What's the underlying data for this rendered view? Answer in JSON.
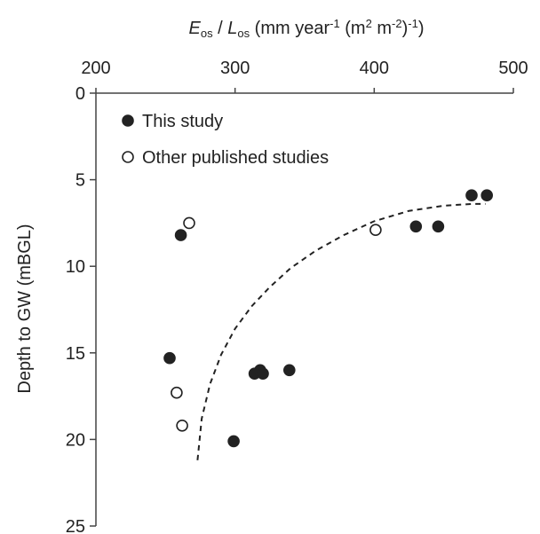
{
  "chart_data": {
    "type": "scatter",
    "title": "",
    "xlabel": {
      "parts": [
        {
          "text": "E",
          "style": "italic"
        },
        {
          "text": "os",
          "style": "sub"
        },
        {
          "text": " / ",
          "style": "normal"
        },
        {
          "text": "L",
          "style": "italic"
        },
        {
          "text": "os",
          "style": "sub"
        },
        {
          "text": " (mm year",
          "style": "normal"
        },
        {
          "text": "-1",
          "style": "sup"
        },
        {
          "text": " (m",
          "style": "normal"
        },
        {
          "text": "2",
          "style": "sup"
        },
        {
          "text": " m",
          "style": "normal"
        },
        {
          "text": "-2",
          "style": "sup"
        },
        {
          "text": ")",
          "style": "normal"
        },
        {
          "text": "-1",
          "style": "sup"
        },
        {
          "text": ")",
          "style": "normal"
        }
      ]
    },
    "ylabel": "Depth to GW (mBGL)",
    "xlim": [
      200,
      500
    ],
    "ylim": [
      0,
      25
    ],
    "y_inverted": true,
    "x_axis_position": "top",
    "x_ticks": [
      "200",
      "300",
      "400",
      "500"
    ],
    "y_ticks": [
      "0",
      "5",
      "10",
      "15",
      "20",
      "25"
    ],
    "grid": false,
    "legend_position": "top-left",
    "series": [
      {
        "name": "This study",
        "marker": "filled-circle",
        "color": "#222222",
        "points": [
          [
            261,
            8.2
          ],
          [
            253,
            15.3
          ],
          [
            299,
            20.1
          ],
          [
            314,
            16.2
          ],
          [
            318,
            16.0
          ],
          [
            320,
            16.2
          ],
          [
            339,
            16.0
          ],
          [
            430,
            7.7
          ],
          [
            446,
            7.7
          ],
          [
            470,
            5.9
          ],
          [
            481,
            5.9
          ]
        ]
      },
      {
        "name": "Other published studies",
        "marker": "open-circle",
        "color": "#222222",
        "points": [
          [
            267,
            7.5
          ],
          [
            258,
            17.3
          ],
          [
            262,
            19.2
          ],
          [
            401,
            7.9
          ]
        ]
      }
    ],
    "trendline": {
      "style": "dashed",
      "color": "#222222",
      "points": [
        [
          273,
          21.2
        ],
        [
          276,
          18.8
        ],
        [
          282,
          16.8
        ],
        [
          290,
          15.1
        ],
        [
          300,
          13.6
        ],
        [
          312,
          12.3
        ],
        [
          325,
          11.2
        ],
        [
          340,
          10.1
        ],
        [
          358,
          9.1
        ],
        [
          378,
          8.2
        ],
        [
          400,
          7.4
        ],
        [
          425,
          6.8
        ],
        [
          450,
          6.5
        ],
        [
          470,
          6.4
        ],
        [
          480,
          6.4
        ]
      ]
    }
  }
}
